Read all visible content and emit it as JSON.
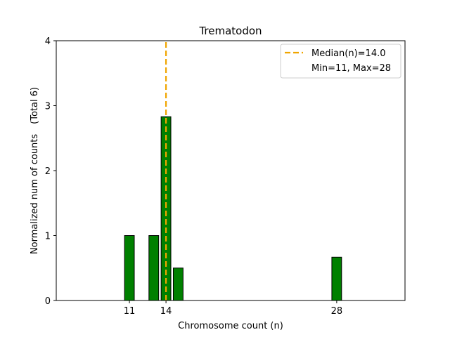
{
  "chart_data": {
    "type": "bar",
    "title": "Trematodon",
    "xlabel": "Chromosome count (n)",
    "ylabel_main": "Normalized num of counts",
    "ylabel_total": "(Total 6)",
    "xlim": [
      5,
      33.6
    ],
    "ylim": [
      0,
      4
    ],
    "x_ticks": [
      11,
      14,
      28
    ],
    "y_ticks": [
      0,
      1,
      2,
      3,
      4
    ],
    "bar_width": 0.8,
    "bars": [
      {
        "x": 11,
        "value": 1.0
      },
      {
        "x": 13,
        "value": 1.0
      },
      {
        "x": 14,
        "value": 2.83
      },
      {
        "x": 15,
        "value": 0.5
      },
      {
        "x": 28,
        "value": 0.667
      }
    ],
    "bar_color": "#008000",
    "median": 14.0,
    "median_color": "#f0a500",
    "legend": {
      "position": "top-right",
      "median_label": "Median(n)=14.0",
      "range_label": "Min=11, Max=28"
    }
  }
}
